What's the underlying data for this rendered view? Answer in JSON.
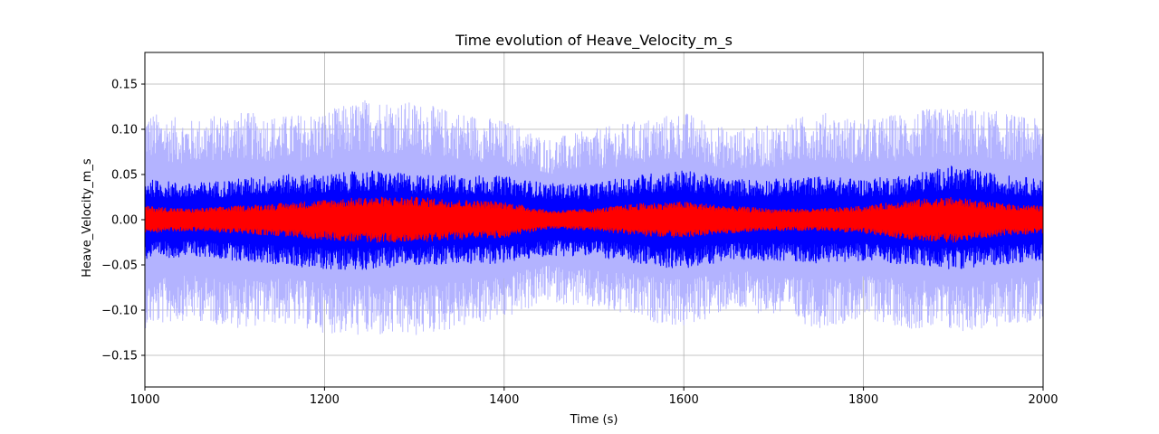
{
  "chart_data": {
    "type": "line",
    "title": "Time evolution of Heave_Velocity_m_s",
    "xlabel": "Time (s)",
    "ylabel": "Heave_Velocity_m_s",
    "xlim": [
      1000,
      2000
    ],
    "ylim": [
      -0.185,
      0.185
    ],
    "xticks": [
      1000,
      1200,
      1400,
      1600,
      1800,
      2000
    ],
    "xtick_labels": [
      "1000",
      "1200",
      "1400",
      "1600",
      "1800",
      "2000"
    ],
    "yticks": [
      -0.15,
      -0.1,
      -0.05,
      0.0,
      0.05,
      0.1,
      0.15
    ],
    "ytick_labels": [
      "−0.15",
      "−0.10",
      "−0.05",
      "0.00",
      "0.05",
      "0.10",
      "0.15"
    ],
    "grid": true,
    "series": [
      {
        "color": "#b3b3ff",
        "style": "band",
        "envelope_x": [
          1000,
          1050,
          1100,
          1150,
          1200,
          1250,
          1300,
          1350,
          1400,
          1450,
          1500,
          1550,
          1600,
          1650,
          1700,
          1750,
          1800,
          1850,
          1900,
          1950,
          2000
        ],
        "envelope_max": [
          0.12,
          0.11,
          0.12,
          0.115,
          0.12,
          0.135,
          0.13,
          0.12,
          0.11,
          0.09,
          0.1,
          0.11,
          0.12,
          0.1,
          0.105,
          0.12,
          0.11,
          0.12,
          0.125,
          0.12,
          0.11
        ],
        "envelope_min": [
          -0.12,
          -0.11,
          -0.12,
          -0.115,
          -0.125,
          -0.13,
          -0.13,
          -0.12,
          -0.11,
          -0.09,
          -0.1,
          -0.11,
          -0.12,
          -0.1,
          -0.105,
          -0.12,
          -0.11,
          -0.12,
          -0.125,
          -0.12,
          -0.11
        ]
      },
      {
        "color": "#0000ff",
        "style": "band",
        "envelope_x": [
          1000,
          1050,
          1100,
          1150,
          1200,
          1250,
          1300,
          1350,
          1400,
          1450,
          1500,
          1550,
          1600,
          1650,
          1700,
          1750,
          1800,
          1850,
          1900,
          1950,
          2000
        ],
        "envelope_max": [
          0.045,
          0.04,
          0.045,
          0.05,
          0.05,
          0.055,
          0.05,
          0.05,
          0.048,
          0.04,
          0.04,
          0.05,
          0.055,
          0.045,
          0.045,
          0.048,
          0.045,
          0.05,
          0.06,
          0.05,
          0.045
        ],
        "envelope_min": [
          -0.045,
          -0.04,
          -0.045,
          -0.05,
          -0.055,
          -0.055,
          -0.05,
          -0.05,
          -0.048,
          -0.04,
          -0.04,
          -0.05,
          -0.055,
          -0.045,
          -0.045,
          -0.048,
          -0.045,
          -0.05,
          -0.055,
          -0.05,
          -0.045
        ]
      },
      {
        "color": "#ff0000",
        "style": "band",
        "envelope_x": [
          1000,
          1050,
          1100,
          1150,
          1200,
          1250,
          1300,
          1350,
          1400,
          1450,
          1500,
          1550,
          1600,
          1650,
          1700,
          1750,
          1800,
          1850,
          1900,
          1950,
          2000
        ],
        "envelope_max": [
          0.015,
          0.012,
          0.015,
          0.018,
          0.022,
          0.025,
          0.025,
          0.022,
          0.02,
          0.01,
          0.012,
          0.018,
          0.02,
          0.015,
          0.012,
          0.012,
          0.015,
          0.022,
          0.025,
          0.018,
          0.015
        ],
        "envelope_min": [
          -0.015,
          -0.012,
          -0.015,
          -0.018,
          -0.022,
          -0.025,
          -0.025,
          -0.022,
          -0.02,
          -0.01,
          -0.012,
          -0.018,
          -0.02,
          -0.015,
          -0.012,
          -0.012,
          -0.015,
          -0.022,
          -0.025,
          -0.018,
          -0.015
        ]
      }
    ]
  }
}
